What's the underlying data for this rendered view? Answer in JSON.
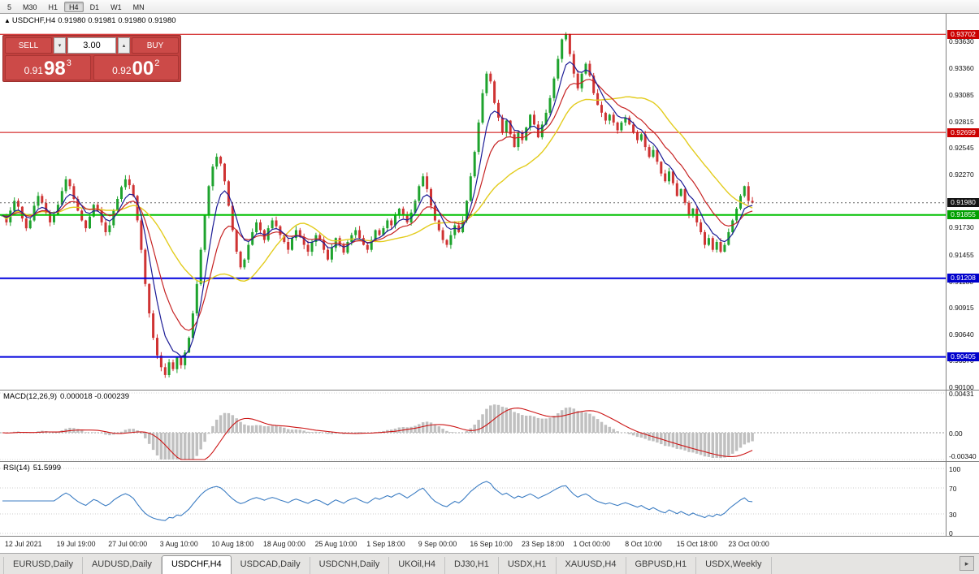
{
  "toolbar": {
    "timeframes": [
      {
        "label": "5"
      },
      {
        "label": "M30"
      },
      {
        "label": "H1"
      },
      {
        "label": "H4"
      },
      {
        "label": "D1"
      },
      {
        "label": "W1"
      },
      {
        "label": "MN"
      }
    ],
    "active_timeframe": "H4"
  },
  "chart_header": {
    "symbol": "USDCHF,H4",
    "ohlc": "0.91980 0.91981 0.91980 0.91980"
  },
  "one_click": {
    "sell_label": "SELL",
    "buy_label": "BUY",
    "volume": "3.00",
    "bid": {
      "prefix": "0.91",
      "big": "98",
      "sup": "3"
    },
    "ask": {
      "prefix": "0.92",
      "big": "00",
      "sup": "2"
    }
  },
  "indicators": {
    "macd": {
      "title": "MACD(12,26,9)",
      "values": "0.000018 -0.000239",
      "axis": [
        "0.00431",
        "0.00",
        "-0.00340"
      ]
    },
    "rsi": {
      "title": "RSI(14)",
      "value": "51.5999",
      "axis": [
        "100",
        "70",
        "30",
        "0"
      ]
    }
  },
  "price_axis": {
    "ticks": [
      "0.93630",
      "0.93360",
      "0.93085",
      "0.92815",
      "0.92545",
      "0.92270",
      "0.92000",
      "0.91730",
      "0.91455",
      "0.91180",
      "0.90915",
      "0.90640",
      "0.90370",
      "0.90100"
    ]
  },
  "levels": [
    {
      "price": 0.93702,
      "label": "0.93702",
      "line_color": "#cc0000",
      "badge_color": "#cc0000",
      "style": "solid",
      "width": 1
    },
    {
      "price": 0.92699,
      "label": "0.92699",
      "line_color": "#cc0000",
      "badge_color": "#cc0000",
      "style": "solid",
      "width": 1
    },
    {
      "price": 0.9198,
      "label": "0.91980",
      "line_color": "#666666",
      "badge_color": "#141414",
      "style": "dotted",
      "width": 1
    },
    {
      "price": 0.91855,
      "label": "0.91855",
      "line_color": "#00c000",
      "badge_color": "#00a000",
      "style": "solid",
      "width": 2
    },
    {
      "price": 0.91208,
      "label": "0.91208",
      "line_color": "#0000dd",
      "badge_color": "#0000cc",
      "style": "solid",
      "width": 2
    },
    {
      "price": 0.90405,
      "label": "0.90405",
      "line_color": "#0000dd",
      "badge_color": "#0000cc",
      "style": "solid",
      "width": 2
    }
  ],
  "tabs": {
    "items": [
      {
        "label": "EURUSD,Daily"
      },
      {
        "label": "AUDUSD,Daily"
      },
      {
        "label": "USDCHF,H4",
        "active": true
      },
      {
        "label": "USDCAD,Daily"
      },
      {
        "label": "USDCNH,Daily"
      },
      {
        "label": "UKOil,H4"
      },
      {
        "label": "DJ30,H1"
      },
      {
        "label": "USDX,H1"
      },
      {
        "label": "XAUUSD,H4"
      },
      {
        "label": "GBPUSD,H1"
      },
      {
        "label": "USDX,Weekly"
      }
    ]
  },
  "colors": {
    "candle_up": "#1ea32e",
    "candle_down": "#cf3333",
    "ma_fast": "#1c1c96",
    "ma_mid": "#c62222",
    "ma_slow": "#e3cc1e",
    "macd_hist": "#c0c0c0",
    "macd_signal": "#cc1515",
    "rsi_line": "#3c7dc3"
  },
  "chart_data": {
    "type": "candlestick",
    "symbol": "USDCHF",
    "period": "H4",
    "title": "USDCHF,H4",
    "price_min": 0.9007,
    "price_max": 0.9382,
    "x_labels": [
      "12 Jul 2021",
      "19 Jul 19:00",
      "27 Jul 00:00",
      "3 Aug 10:00",
      "10 Aug 18:00",
      "18 Aug 00:00",
      "25 Aug 10:00",
      "1 Sep 18:00",
      "9 Sep 00:00",
      "16 Sep 10:00",
      "23 Sep 18:00",
      "1 Oct 00:00",
      "8 Oct 10:00",
      "15 Oct 18:00",
      "23 Oct 00:00"
    ],
    "closes_e4": [
      9185,
      9178,
      9190,
      9200,
      9194,
      9182,
      9172,
      9180,
      9195,
      9205,
      9198,
      9188,
      9178,
      9186,
      9196,
      9210,
      9222,
      9215,
      9202,
      9190,
      9180,
      9172,
      9184,
      9196,
      9190,
      9178,
      9168,
      9175,
      9190,
      9202,
      9214,
      9222,
      9216,
      9205,
      9180,
      9150,
      9115,
      9085,
      9060,
      9042,
      9030,
      9022,
      9035,
      9028,
      9040,
      9032,
      9045,
      9060,
      9085,
      9115,
      9150,
      9185,
      9215,
      9235,
      9245,
      9238,
      9220,
      9195,
      9170,
      9148,
      9132,
      9140,
      9155,
      9168,
      9178,
      9170,
      9160,
      9172,
      9180,
      9174,
      9165,
      9158,
      9150,
      9162,
      9170,
      9163,
      9155,
      9148,
      9158,
      9165,
      9160,
      9150,
      9140,
      9152,
      9162,
      9155,
      9147,
      9158,
      9165,
      9170,
      9162,
      9155,
      9150,
      9160,
      9170,
      9165,
      9172,
      9180,
      9175,
      9185,
      9192,
      9185,
      9178,
      9188,
      9200,
      9215,
      9225,
      9212,
      9195,
      9180,
      9170,
      9160,
      9155,
      9165,
      9175,
      9168,
      9180,
      9200,
      9225,
      9250,
      9280,
      9310,
      9330,
      9322,
      9300,
      9285,
      9270,
      9282,
      9268,
      9255,
      9270,
      9262,
      9275,
      9288,
      9278,
      9265,
      9278,
      9290,
      9305,
      9325,
      9345,
      9365,
      9370,
      9350,
      9330,
      9315,
      9330,
      9340,
      9328,
      9310,
      9298,
      9290,
      9282,
      9288,
      9280,
      9272,
      9280,
      9285,
      9278,
      9270,
      9262,
      9268,
      9255,
      9245,
      9252,
      9240,
      9228,
      9220,
      9230,
      9218,
      9205,
      9212,
      9198,
      9185,
      9192,
      9178,
      9168,
      9155,
      9162,
      9150,
      9158,
      9148,
      9155,
      9168,
      9180,
      9192,
      9205,
      9215,
      9200,
      9198
    ],
    "indicators": [
      {
        "name": "MACD",
        "params": "12,26,9",
        "current": "0.000018 -0.000239",
        "axis_range": [
          -0.0034,
          0.00431
        ]
      },
      {
        "name": "RSI",
        "params": "14",
        "current": "51.5999",
        "axis_range": [
          0,
          100
        ],
        "levels": [
          30,
          70
        ]
      }
    ]
  }
}
